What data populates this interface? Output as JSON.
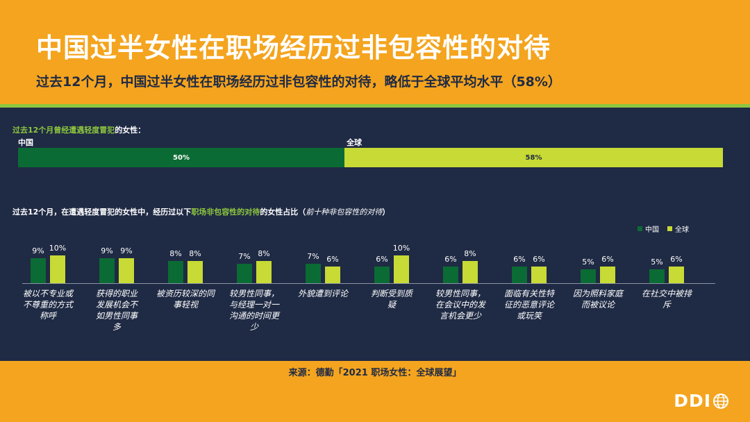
{
  "header": {
    "title": "中国过半女性在职场经历过非包容性的对待",
    "subtitle": "过去12个月，中国过半女性在职场经历过非包容性的对待，略低于全球平均水平（58%）"
  },
  "summary": {
    "label_prefix": "过去12个月曾经遭遇轻度冒犯",
    "label_suffix": "的女性：",
    "china_name": "中国",
    "china_value": "50%",
    "china_fraction": 0.5,
    "global_name": "全球",
    "global_value": "58%",
    "global_fraction": 0.58
  },
  "chart_heading": {
    "part1": "过去12个月，在遭遇轻度冒犯的女性中，经历过以下",
    "part2": "职场非包容性的对待",
    "part3": "的女性占比（",
    "part4": "前十种非包容性的对待",
    "part5": "）"
  },
  "chart_data": {
    "type": "bar",
    "categories": [
      "被以不专业或不尊重的方式称呼",
      "获得的职业发展机会不如男性同事多",
      "被资历较深的同事轻视",
      "较男性同事，与经理一对一沟通的时间更少",
      "外貌遭到评论",
      "判断受到质疑",
      "较男性同事，在会议中的发言机会更少",
      "面临有关性特征的恶意评论或玩笑",
      "因为照料家庭而被议论",
      "在社交中被排斥"
    ],
    "category_lines": [
      [
        "被以不专业或",
        "不尊重的方式",
        "称呼"
      ],
      [
        "获得的职业",
        "发展机会不",
        "如男性同事",
        "多"
      ],
      [
        "被资历较深的同",
        "事轻视"
      ],
      [
        "较男性同事，",
        "与经理一对一",
        "沟通的时间更",
        "少"
      ],
      [
        "外貌遭到评论"
      ],
      [
        "判断受到质",
        "疑"
      ],
      [
        "较男性同事，",
        "在会议中的发",
        "言机会更少"
      ],
      [
        "面临有关性特",
        "征的恶意评论",
        "或玩笑"
      ],
      [
        "因为照料家庭",
        "而被议论"
      ],
      [
        "在社交中被排",
        "斥"
      ]
    ],
    "series": [
      {
        "name": "中国",
        "color": "#0B6B34",
        "values": [
          9,
          9,
          8,
          7,
          7,
          6,
          6,
          6,
          5,
          5
        ]
      },
      {
        "name": "全球",
        "color": "#C7DA35",
        "values": [
          10,
          9,
          8,
          8,
          6,
          10,
          8,
          6,
          6,
          6
        ]
      }
    ],
    "legend_position": "top-right",
    "grid": false
  },
  "source": "来源：德勤「2021 职场女性：全球展望」",
  "logo": {
    "text": "DDI",
    "icon": "globe-icon"
  }
}
